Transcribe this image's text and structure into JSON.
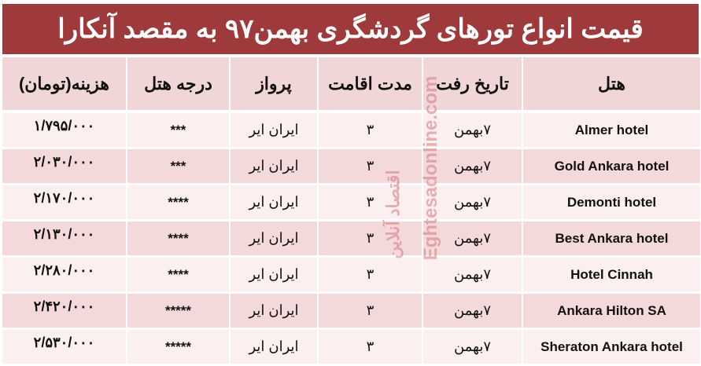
{
  "title": "قیمت انواع تورهای گردشگری بهمن۹۷ به مقصد آنکارا",
  "headers": {
    "cost": "هزینه(تومان)",
    "grade": "درجه هتل",
    "flight": "پرواز",
    "stay": "مدت اقامت",
    "date": "تاریخ رفت",
    "hotel": "هتل"
  },
  "rows": [
    {
      "cost": "۱/۷۹۵/۰۰۰",
      "grade": "***",
      "flight": "ایران ایر",
      "stay": "۳",
      "date": "۷بهمن",
      "hotel": "Almer hotel"
    },
    {
      "cost": "۲/۰۳۰/۰۰۰",
      "grade": "***",
      "flight": "ایران ایر",
      "stay": "۳",
      "date": "۷بهمن",
      "hotel": "Gold Ankara hotel"
    },
    {
      "cost": "۲/۱۷۰/۰۰۰",
      "grade": "****",
      "flight": "ایران ایر",
      "stay": "۳",
      "date": "۷بهمن",
      "hotel": "Demonti hotel"
    },
    {
      "cost": "۲/۱۳۰/۰۰۰",
      "grade": "****",
      "flight": "ایران ایر",
      "stay": "۳",
      "date": "۷بهمن",
      "hotel": "Best Ankara hotel"
    },
    {
      "cost": "۲/۲۸۰/۰۰۰",
      "grade": "****",
      "flight": "ایران ایر",
      "stay": "۳",
      "date": "۷بهمن",
      "hotel": "Hotel Cinnah"
    },
    {
      "cost": "۲/۴۲۰/۰۰۰",
      "grade": "*****",
      "flight": "ایران ایر",
      "stay": "۳",
      "date": "۷بهمن",
      "hotel": "Ankara Hilton SA"
    },
    {
      "cost": "۲/۵۳۰/۰۰۰",
      "grade": "*****",
      "flight": "ایران ایر",
      "stay": "۳",
      "date": "۷بهمن",
      "hotel": "Sheraton Ankara hotel"
    }
  ],
  "watermark": {
    "latin": "Eghtesadonline.com",
    "persian": "اقتصاد آنلاین"
  },
  "colors": {
    "title_bg": "#9e3a3b",
    "header_bg": "#f1d6d8",
    "row_light": "#fcefef",
    "row_dark": "#f4d9db"
  }
}
